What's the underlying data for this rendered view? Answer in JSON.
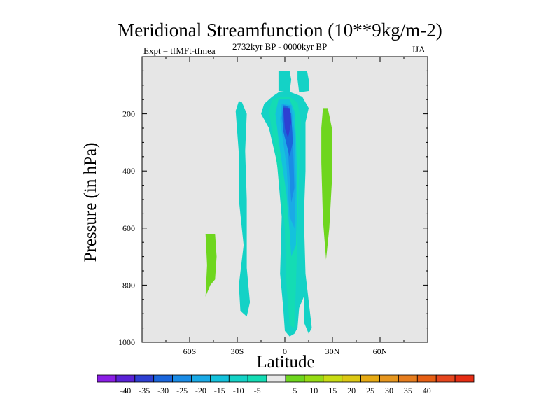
{
  "chart_data": {
    "type": "contour",
    "title": "Meridional Streamfunction (10**9kg/m-2)",
    "subtitle_left": "Expt = tfMFt-tfmea",
    "subtitle_center": "2732kyr BP - 0000kyr BP",
    "subtitle_right": "JJA",
    "xlabel": "Latitude",
    "ylabel": "Pressure (in hPa)",
    "xlim": [
      -90,
      90
    ],
    "ylim": [
      1000,
      0
    ],
    "x_ticks": [
      {
        "value": -60,
        "label": "60S"
      },
      {
        "value": -30,
        "label": "30S"
      },
      {
        "value": 0,
        "label": "0"
      },
      {
        "value": 30,
        "label": "30N"
      },
      {
        "value": 60,
        "label": "60N"
      }
    ],
    "y_ticks": [
      {
        "value": 200,
        "label": "200"
      },
      {
        "value": 400,
        "label": "400"
      },
      {
        "value": 600,
        "label": "600"
      },
      {
        "value": 800,
        "label": "800"
      },
      {
        "value": 1000,
        "label": "1000"
      }
    ],
    "background_color": "#e6e6e6",
    "colorbar": {
      "colors": [
        "#8b1ee6",
        "#5a22d6",
        "#2e3fd2",
        "#1a66dc",
        "#1a8ce6",
        "#1aaae6",
        "#14c2dc",
        "#14d2c6",
        "#14dcb4",
        "#e8e8e8",
        "#6ed61e",
        "#96dc14",
        "#c8dc14",
        "#dcc814",
        "#e6aa14",
        "#e6961e",
        "#e67d1e",
        "#e65f14",
        "#e6461e",
        "#e62d14"
      ],
      "labels": [
        "-40",
        "-35",
        "-30",
        "-25",
        "-20",
        "-15",
        "-10",
        "-5",
        "5",
        "10",
        "15",
        "20",
        "25",
        "30",
        "35",
        "40"
      ]
    },
    "regions": [
      {
        "level": -10,
        "color": "#14d2c6",
        "points": [
          [
            -4,
            50
          ],
          [
            -4,
            120
          ],
          [
            3,
            125
          ],
          [
            4,
            80
          ],
          [
            3,
            50
          ]
        ]
      },
      {
        "level": -10,
        "color": "#14d2c6",
        "points": [
          [
            8,
            50
          ],
          [
            8,
            80
          ],
          [
            9,
            125
          ],
          [
            15,
            120
          ],
          [
            15,
            80
          ],
          [
            14,
            50
          ]
        ]
      },
      {
        "level": -10,
        "color": "#14d2c6",
        "points": [
          [
            -29,
            155
          ],
          [
            -31,
            190
          ],
          [
            -29,
            340
          ],
          [
            -29,
            500
          ],
          [
            -26,
            660
          ],
          [
            -29,
            800
          ],
          [
            -28,
            890
          ],
          [
            -24,
            910
          ],
          [
            -22,
            860
          ],
          [
            -24,
            740
          ],
          [
            -24,
            500
          ],
          [
            -25,
            330
          ],
          [
            -24,
            200
          ],
          [
            -27,
            160
          ]
        ]
      },
      {
        "level": -10,
        "color": "#14d2c6",
        "points": [
          [
            -13,
            165
          ],
          [
            -15,
            200
          ],
          [
            -10,
            250
          ],
          [
            -5,
            370
          ],
          [
            -2,
            560
          ],
          [
            -3,
            760
          ],
          [
            -1,
            880
          ],
          [
            0,
            960
          ],
          [
            3,
            980
          ],
          [
            6,
            970
          ],
          [
            8,
            950
          ],
          [
            9,
            880
          ],
          [
            12,
            840
          ],
          [
            12,
            930
          ],
          [
            15,
            970
          ],
          [
            17,
            950
          ],
          [
            13,
            760
          ],
          [
            12,
            560
          ],
          [
            13,
            400
          ],
          [
            13,
            230
          ],
          [
            15,
            180
          ],
          [
            11,
            140
          ],
          [
            4,
            125
          ],
          [
            -4,
            125
          ],
          [
            -8,
            140
          ]
        ]
      },
      {
        "level": -5,
        "color": "#14dcb4",
        "points": [
          [
            -8,
            150
          ],
          [
            -10,
            190
          ],
          [
            -7,
            300
          ],
          [
            -3,
            450
          ],
          [
            0,
            600
          ],
          [
            1,
            800
          ],
          [
            3,
            940
          ],
          [
            6,
            950
          ],
          [
            7,
            800
          ],
          [
            8,
            600
          ],
          [
            9,
            400
          ],
          [
            10,
            220
          ],
          [
            8,
            160
          ],
          [
            3,
            140
          ],
          [
            -2,
            140
          ]
        ]
      },
      {
        "level": -15,
        "color": "#14c2dc",
        "points": [
          [
            -4,
            150
          ],
          [
            -6,
            200
          ],
          [
            -3,
            330
          ],
          [
            1,
            480
          ],
          [
            3,
            610
          ],
          [
            4,
            700
          ],
          [
            7,
            660
          ],
          [
            8,
            480
          ],
          [
            7,
            280
          ],
          [
            6,
            190
          ],
          [
            3,
            150
          ]
        ]
      },
      {
        "level": -20,
        "color": "#1aaae6",
        "points": [
          [
            -2,
            165
          ],
          [
            -3,
            220
          ],
          [
            1,
            380
          ],
          [
            3,
            560
          ],
          [
            6,
            600
          ],
          [
            7,
            450
          ],
          [
            6,
            260
          ],
          [
            4,
            170
          ]
        ]
      },
      {
        "level": -25,
        "color": "#1a8ce6",
        "points": [
          [
            -1,
            168
          ],
          [
            -2,
            215
          ],
          [
            2,
            330
          ],
          [
            4,
            510
          ],
          [
            6,
            460
          ],
          [
            5,
            270
          ],
          [
            3,
            175
          ]
        ]
      },
      {
        "level": -30,
        "color": "#1a66dc",
        "points": [
          [
            -1,
            172
          ],
          [
            -1,
            260
          ],
          [
            3,
            350
          ],
          [
            5,
            300
          ],
          [
            4,
            200
          ],
          [
            2,
            175
          ]
        ]
      },
      {
        "level": -35,
        "color": "#2e3fd2",
        "points": [
          [
            -1,
            178
          ],
          [
            0,
            250
          ],
          [
            2,
            285
          ],
          [
            4,
            230
          ],
          [
            3,
            180
          ]
        ]
      },
      {
        "level": 10,
        "color": "#6ed61e",
        "points": [
          [
            -50,
            620
          ],
          [
            -49,
            730
          ],
          [
            -50,
            840
          ],
          [
            -47,
            800
          ],
          [
            -44,
            780
          ],
          [
            -43,
            700
          ],
          [
            -44,
            620
          ]
        ]
      },
      {
        "level": 10,
        "color": "#6ed61e",
        "points": [
          [
            24,
            180
          ],
          [
            23,
            250
          ],
          [
            23,
            370
          ],
          [
            24,
            570
          ],
          [
            26,
            710
          ],
          [
            28,
            600
          ],
          [
            30,
            400
          ],
          [
            30,
            260
          ],
          [
            28,
            205
          ],
          [
            27,
            180
          ]
        ]
      }
    ]
  }
}
